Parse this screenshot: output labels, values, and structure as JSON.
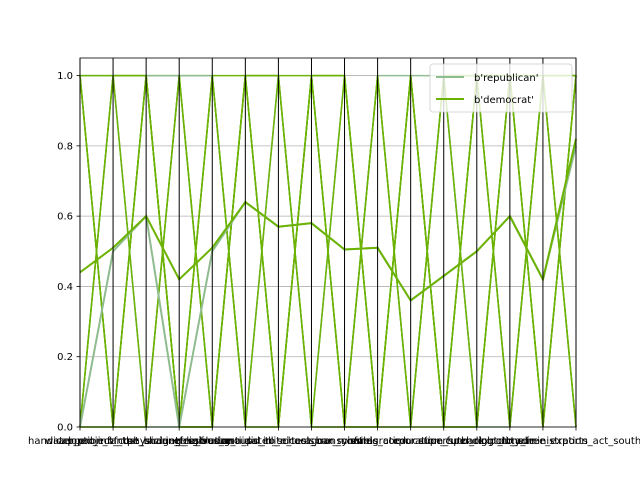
{
  "chart_data": {
    "type": "line",
    "subtype": "parallel-coordinates",
    "title": "",
    "xlabel": "",
    "ylabel": "",
    "ylim": [
      0.0,
      1.05
    ],
    "y_ticks": [
      0.0,
      0.2,
      0.4,
      0.6,
      0.8,
      1.0
    ],
    "y_tick_labels": [
      "0.0",
      "0.2",
      "0.4",
      "0.6",
      "0.8",
      "1.0"
    ],
    "grid": true,
    "legend_position": "top-right",
    "categories": [
      "handicapped_infants",
      "water_project_cost_sharing",
      "adoption_of_the_budget_resolution",
      "physician_fee_freeze",
      "el_salvador_aid",
      "religious_groups_in_schools",
      "anti_satellite_test_ban",
      "aid_to_nicaraguan_contras",
      "mx_missile",
      "immigration",
      "synfuels_corporation_cutback",
      "education_spending",
      "superfund_right_to_sue",
      "crime",
      "duty_free_exports",
      "export_administration_act_south_africa"
    ],
    "series": [
      {
        "name": "b'republican'",
        "color": "#8fbc8f",
        "mean": [
          0.0,
          0.5,
          0.6,
          0.0,
          0.5,
          0.64,
          0.57,
          0.58,
          0.505,
          0.51,
          0.36,
          0.43,
          0.5,
          0.6,
          0.42,
          0.8
        ],
        "values": [
          [
            0,
            1,
            0,
            1,
            0,
            1,
            0,
            1,
            0,
            1,
            0,
            1,
            0,
            1,
            0,
            1
          ],
          [
            1,
            0,
            1,
            0,
            1,
            0,
            1,
            0,
            1,
            0,
            1,
            0,
            1,
            0,
            1,
            0
          ],
          [
            0,
            1,
            1,
            1,
            0,
            1,
            1,
            0,
            1,
            0,
            1,
            1,
            0,
            1,
            1,
            0
          ],
          [
            1,
            0,
            0,
            1,
            1,
            0,
            0,
            1,
            0,
            1,
            0,
            1,
            1,
            0,
            1,
            1
          ],
          [
            0,
            0,
            1,
            1,
            1,
            0,
            1,
            0,
            0,
            1,
            1,
            0,
            1,
            1,
            0,
            1
          ],
          [
            1,
            1,
            0,
            0,
            0,
            1,
            0,
            1,
            1,
            0,
            0,
            1,
            0,
            0,
            1,
            1
          ]
        ]
      },
      {
        "name": "b'democrat'",
        "color": "#6bb300",
        "mean": [
          0.44,
          0.51,
          0.6,
          0.42,
          0.51,
          0.64,
          0.57,
          0.58,
          0.505,
          0.51,
          0.36,
          0.43,
          0.5,
          0.6,
          0.42,
          0.82
        ],
        "values": [
          [
            1,
            0,
            1,
            0,
            1,
            0,
            1,
            0,
            1,
            0,
            1,
            0,
            1,
            0,
            1,
            0
          ],
          [
            0,
            1,
            0,
            1,
            0,
            1,
            0,
            1,
            0,
            1,
            0,
            1,
            0,
            1,
            0,
            1
          ],
          [
            1,
            1,
            1,
            0,
            0,
            1,
            1,
            1,
            0,
            0,
            1,
            0,
            1,
            1,
            0,
            1
          ],
          [
            1,
            0,
            1,
            0,
            1,
            1,
            0,
            1,
            1,
            0,
            0,
            1,
            1,
            0,
            1,
            1
          ],
          [
            0,
            1,
            1,
            0,
            1,
            0,
            0,
            1,
            0,
            1,
            0,
            0,
            1,
            1,
            0,
            1
          ],
          [
            1,
            0,
            0,
            1,
            0,
            1,
            1,
            0,
            0,
            0,
            1,
            0,
            0,
            1,
            1,
            0
          ],
          [
            0,
            0,
            1,
            0,
            0,
            1,
            0,
            1,
            1,
            0,
            1,
            0,
            0,
            1,
            1,
            1
          ]
        ]
      }
    ]
  }
}
